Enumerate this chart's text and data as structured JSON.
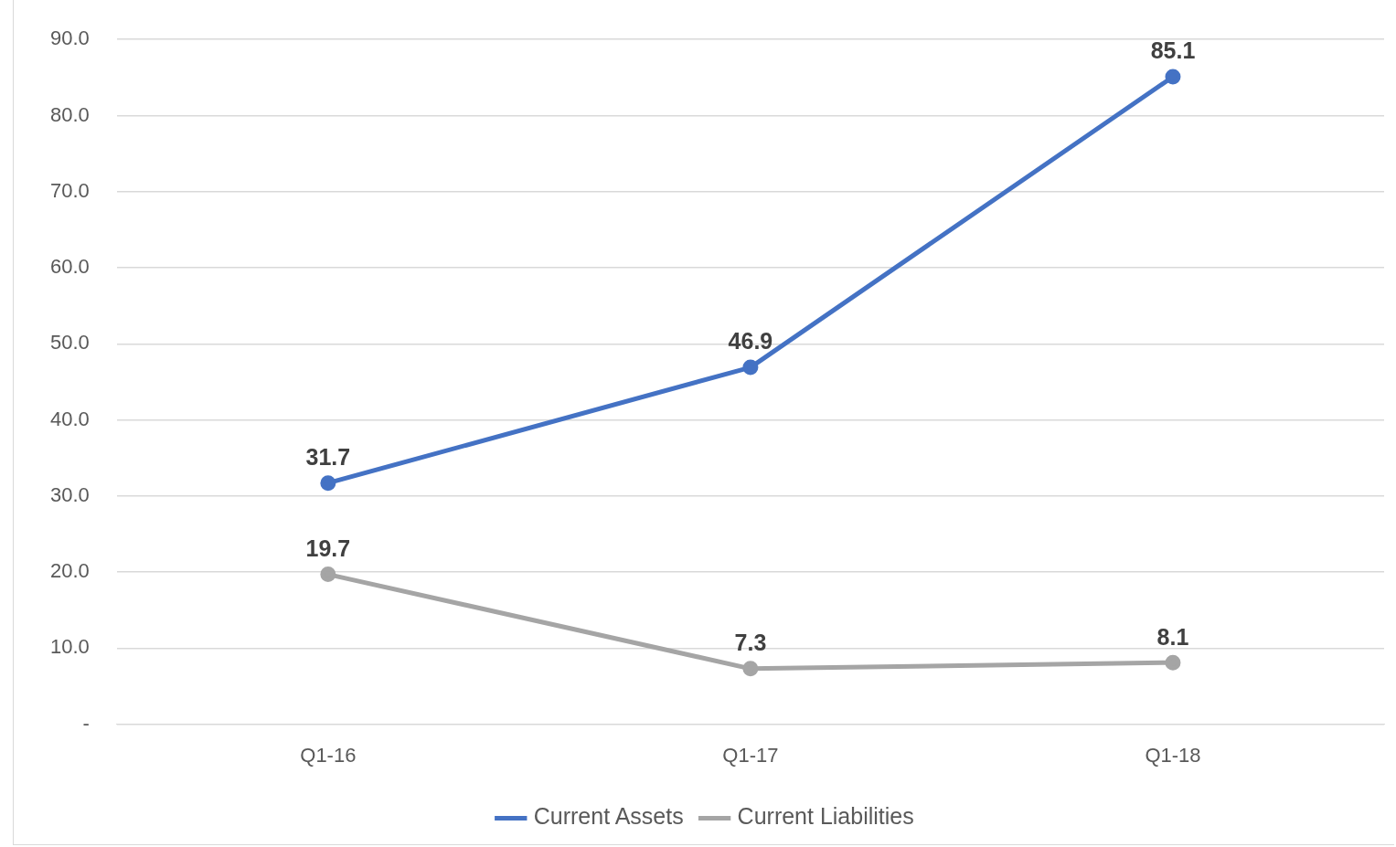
{
  "chart_data": {
    "type": "line",
    "categories": [
      "Q1-16",
      "Q1-17",
      "Q1-18"
    ],
    "series": [
      {
        "name": "Current Assets",
        "color": "#4472c4",
        "values": [
          31.7,
          46.9,
          85.1
        ]
      },
      {
        "name": "Current Liabilities",
        "color": "#a5a5a5",
        "values": [
          19.7,
          7.3,
          8.1
        ]
      }
    ],
    "ylim": [
      0,
      90
    ],
    "yticks": [
      {
        "value": 0,
        "label": "-"
      },
      {
        "value": 10,
        "label": "10.0"
      },
      {
        "value": 20,
        "label": "20.0"
      },
      {
        "value": 30,
        "label": "30.0"
      },
      {
        "value": 40,
        "label": "40.0"
      },
      {
        "value": 50,
        "label": "50.0"
      },
      {
        "value": 60,
        "label": "60.0"
      },
      {
        "value": 70,
        "label": "70.0"
      },
      {
        "value": 80,
        "label": "80.0"
      },
      {
        "value": 90,
        "label": "90.0"
      }
    ],
    "grid": "y",
    "legend": "bottom",
    "data_labels": true,
    "marker": "circle",
    "line_style": "solid"
  }
}
